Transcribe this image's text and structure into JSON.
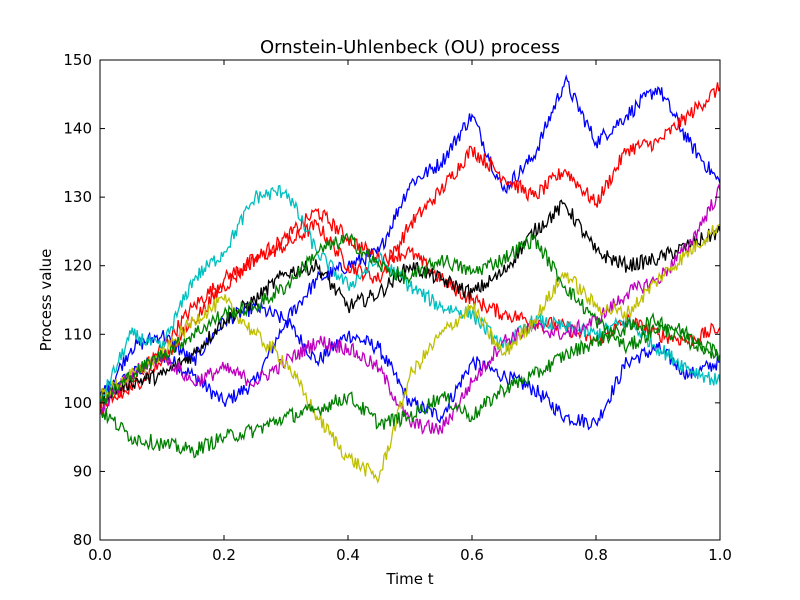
{
  "chart_data": {
    "type": "line",
    "title": "Ornstein-Uhlenbeck (OU) process",
    "xlabel": "Time t",
    "ylabel": "Process value",
    "xlim": [
      0.0,
      1.0
    ],
    "ylim": [
      80,
      150
    ],
    "xticks": [
      0.0,
      0.2,
      0.4,
      0.6,
      0.8,
      1.0
    ],
    "xtick_labels": [
      "0.0",
      "0.2",
      "0.4",
      "0.6",
      "0.8",
      "1.0"
    ],
    "yticks": [
      80,
      90,
      100,
      110,
      120,
      130,
      140,
      150
    ],
    "ytick_labels": [
      "80",
      "90",
      "100",
      "110",
      "120",
      "130",
      "140",
      "150"
    ],
    "grid": false,
    "series": [
      {
        "color": "#0000ff",
        "x": [
          0,
          0.05,
          0.1,
          0.15,
          0.2,
          0.25,
          0.3,
          0.35,
          0.4,
          0.45,
          0.5,
          0.55,
          0.6,
          0.65,
          0.7,
          0.75,
          0.8,
          0.85,
          0.9,
          0.95,
          1.0
        ],
        "values": [
          101,
          104,
          107,
          104,
          100,
          103,
          112,
          106,
          110,
          108,
          100,
          98,
          106,
          104,
          102,
          98,
          97,
          106,
          108,
          104,
          106
        ]
      },
      {
        "color": "#0000ff",
        "x": [
          0,
          0.05,
          0.1,
          0.15,
          0.2,
          0.25,
          0.3,
          0.35,
          0.4,
          0.45,
          0.5,
          0.55,
          0.6,
          0.65,
          0.7,
          0.75,
          0.8,
          0.85,
          0.9,
          0.95,
          1.0
        ],
        "values": [
          100,
          108,
          110,
          106,
          112,
          114,
          112,
          118,
          120,
          122,
          132,
          135,
          142,
          131,
          136,
          147,
          138,
          142,
          146,
          138,
          132
        ]
      },
      {
        "color": "#ff0000",
        "x": [
          0,
          0.05,
          0.1,
          0.15,
          0.2,
          0.25,
          0.3,
          0.35,
          0.4,
          0.45,
          0.5,
          0.55,
          0.6,
          0.65,
          0.7,
          0.75,
          0.8,
          0.85,
          0.9,
          0.95,
          1.0
        ],
        "values": [
          100,
          103,
          108,
          114,
          118,
          121,
          123,
          126,
          120,
          118,
          126,
          131,
          137,
          133,
          130,
          134,
          129,
          137,
          138,
          142,
          146
        ]
      },
      {
        "color": "#ff0000",
        "x": [
          0,
          0.05,
          0.1,
          0.15,
          0.2,
          0.25,
          0.3,
          0.35,
          0.4,
          0.45,
          0.5,
          0.55,
          0.6,
          0.65,
          0.7,
          0.75,
          0.8,
          0.85,
          0.9,
          0.95,
          1.0
        ],
        "values": [
          99,
          102,
          106,
          112,
          117,
          121,
          124,
          128,
          124,
          121,
          122,
          118,
          115,
          113,
          112,
          111,
          109,
          112,
          110,
          109,
          111
        ]
      },
      {
        "color": "#000000",
        "x": [
          0,
          0.05,
          0.1,
          0.15,
          0.2,
          0.25,
          0.3,
          0.35,
          0.4,
          0.45,
          0.5,
          0.55,
          0.6,
          0.65,
          0.7,
          0.75,
          0.8,
          0.85,
          0.9,
          0.95,
          1.0
        ],
        "values": [
          101,
          103,
          104,
          107,
          112,
          115,
          119,
          120,
          114,
          116,
          120,
          118,
          116,
          119,
          125,
          129,
          122,
          120,
          121,
          123,
          125
        ]
      },
      {
        "color": "#00bfbf",
        "x": [
          0,
          0.05,
          0.1,
          0.15,
          0.2,
          0.25,
          0.3,
          0.35,
          0.4,
          0.45,
          0.5,
          0.55,
          0.6,
          0.65,
          0.7,
          0.75,
          0.8,
          0.85,
          0.9,
          0.95,
          1.0
        ],
        "values": [
          100,
          110,
          108,
          118,
          122,
          130,
          131,
          122,
          117,
          121,
          117,
          114,
          113,
          108,
          112,
          111,
          110,
          112,
          108,
          105,
          103
        ]
      },
      {
        "color": "#bf00bf",
        "x": [
          0,
          0.05,
          0.1,
          0.15,
          0.2,
          0.25,
          0.3,
          0.35,
          0.4,
          0.45,
          0.5,
          0.55,
          0.6,
          0.65,
          0.7,
          0.75,
          0.8,
          0.85,
          0.9,
          0.95,
          1.0
        ],
        "values": [
          99,
          104,
          107,
          103,
          105,
          103,
          106,
          109,
          108,
          105,
          97,
          96,
          103,
          109,
          111,
          110,
          112,
          116,
          118,
          123,
          131
        ]
      },
      {
        "color": "#bfbf00",
        "x": [
          0,
          0.05,
          0.1,
          0.15,
          0.2,
          0.25,
          0.3,
          0.35,
          0.4,
          0.45,
          0.5,
          0.55,
          0.6,
          0.65,
          0.7,
          0.75,
          0.8,
          0.85,
          0.9,
          0.95,
          1.0
        ],
        "values": [
          101,
          104,
          107,
          112,
          115,
          110,
          106,
          98,
          92,
          89,
          104,
          110,
          114,
          107,
          112,
          119,
          114,
          113,
          118,
          122,
          126
        ]
      },
      {
        "color": "#008000",
        "x": [
          0,
          0.05,
          0.1,
          0.15,
          0.2,
          0.25,
          0.3,
          0.35,
          0.4,
          0.45,
          0.5,
          0.55,
          0.6,
          0.65,
          0.7,
          0.75,
          0.8,
          0.85,
          0.9,
          0.95,
          1.0
        ],
        "values": [
          99,
          95,
          94,
          93,
          95,
          96,
          98,
          99,
          101,
          97,
          98,
          101,
          98,
          102,
          104,
          107,
          109,
          111,
          112,
          110,
          107
        ]
      },
      {
        "color": "#008000",
        "x": [
          0,
          0.05,
          0.1,
          0.15,
          0.2,
          0.25,
          0.3,
          0.35,
          0.4,
          0.45,
          0.5,
          0.55,
          0.6,
          0.65,
          0.7,
          0.75,
          0.8,
          0.85,
          0.9,
          0.95,
          1.0
        ],
        "values": [
          100,
          104,
          107,
          110,
          113,
          114,
          117,
          122,
          124,
          120,
          118,
          121,
          119,
          121,
          124,
          117,
          112,
          108,
          111,
          109,
          107
        ]
      }
    ]
  }
}
